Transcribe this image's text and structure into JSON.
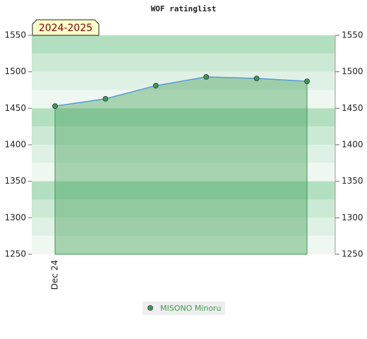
{
  "chart_data": {
    "type": "area",
    "title": "WOF ratinglist",
    "annotation": "2024-2025",
    "categories": [
      "Dec 24",
      null,
      null,
      null,
      null,
      null
    ],
    "series": [
      {
        "name": "MISONO Minoru",
        "color": "#3c9a50",
        "line_color": "#5b9bd5",
        "values": [
          1453,
          1463,
          1481,
          1493,
          1491,
          1487
        ]
      }
    ],
    "ylim": [
      1250,
      1550
    ],
    "yticks": [
      1250,
      1300,
      1350,
      1400,
      1450,
      1500,
      1550
    ],
    "y2lim": [
      1250,
      1550
    ],
    "y2ticks": [
      1250,
      1300,
      1350,
      1400,
      1450,
      1500,
      1550
    ],
    "grid": true,
    "legend": "bottom"
  }
}
